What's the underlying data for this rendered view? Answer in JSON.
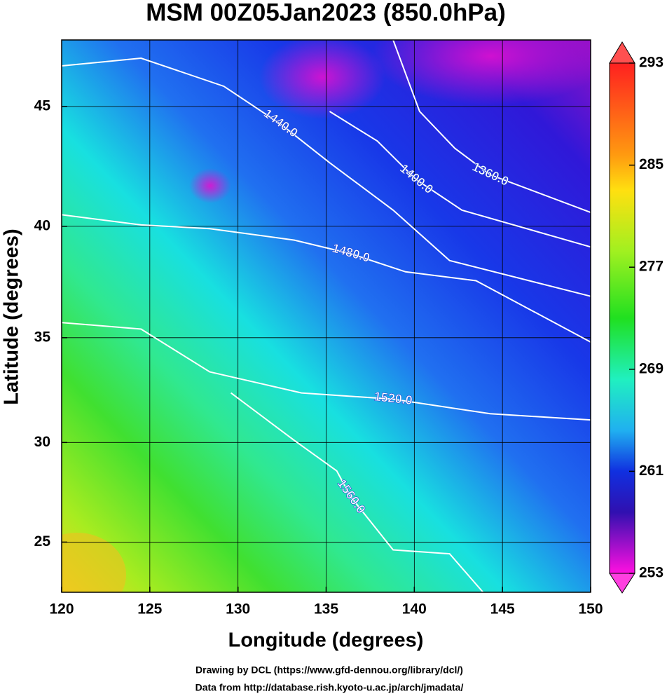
{
  "chart_data": {
    "type": "contour_map",
    "projection": "mercator",
    "title": "MSM 00Z05Jan2023 (850.0hPa)",
    "x_label": "Longitude (degrees)",
    "y_label": "Latitude  (degrees)",
    "xlim": [
      120,
      150
    ],
    "ylim": [
      22.4,
      47.6
    ],
    "xticks": [
      120,
      125,
      130,
      135,
      140,
      145,
      150
    ],
    "yticks": [
      25,
      30,
      35,
      40,
      45
    ],
    "grid": true,
    "colorbar": {
      "lim": [
        253,
        293
      ],
      "ticks": [
        253,
        261,
        269,
        277,
        285,
        293
      ]
    },
    "contours": [
      {
        "label": "1360.0",
        "lon": [
          138.8,
          140.3,
          142.3,
          144.3,
          150
        ],
        "lat": [
          47.6,
          44.8,
          43.3,
          42.2,
          40.6
        ]
      },
      {
        "label": "1400.0",
        "lon": [
          135.2,
          137.9,
          140.1,
          142.7,
          150
        ],
        "lat": [
          44.8,
          43.6,
          42.0,
          40.7,
          39.1
        ]
      },
      {
        "label": "1440.0",
        "lon": [
          120,
          124.5,
          129.2,
          132.4,
          135.2,
          138.8,
          142,
          150
        ],
        "lat": [
          46.6,
          46.9,
          45.8,
          44.3,
          42.7,
          40.7,
          38.5,
          36.9
        ]
      },
      {
        "label": "1480.0",
        "lon": [
          120,
          124.5,
          128.4,
          133.2,
          136.4,
          139.5,
          143.5,
          150
        ],
        "lat": [
          40.5,
          40.06,
          39.9,
          39.4,
          38.8,
          38.0,
          37.6,
          34.8
        ]
      },
      {
        "label": "1520.0",
        "lon": [
          120,
          124.5,
          128.4,
          133.6,
          138.8,
          144.3,
          150
        ],
        "lat": [
          35.7,
          35.4,
          33.4,
          32.4,
          32.1,
          31.4,
          31.1
        ]
      },
      {
        "label": "1560.0",
        "lon": [
          129.6,
          133.2,
          135.6,
          136.4,
          138.8,
          142,
          143.9
        ],
        "lat": [
          32.4,
          30.1,
          28.6,
          27.3,
          24.6,
          24.4,
          22.4
        ]
      }
    ],
    "footer": [
      "Drawing by DCL (https://www.gfd-dennou.org/library/dcl/)",
      "Data from http://database.rish.kyoto-u.ac.jp/arch/jmadata/"
    ]
  }
}
